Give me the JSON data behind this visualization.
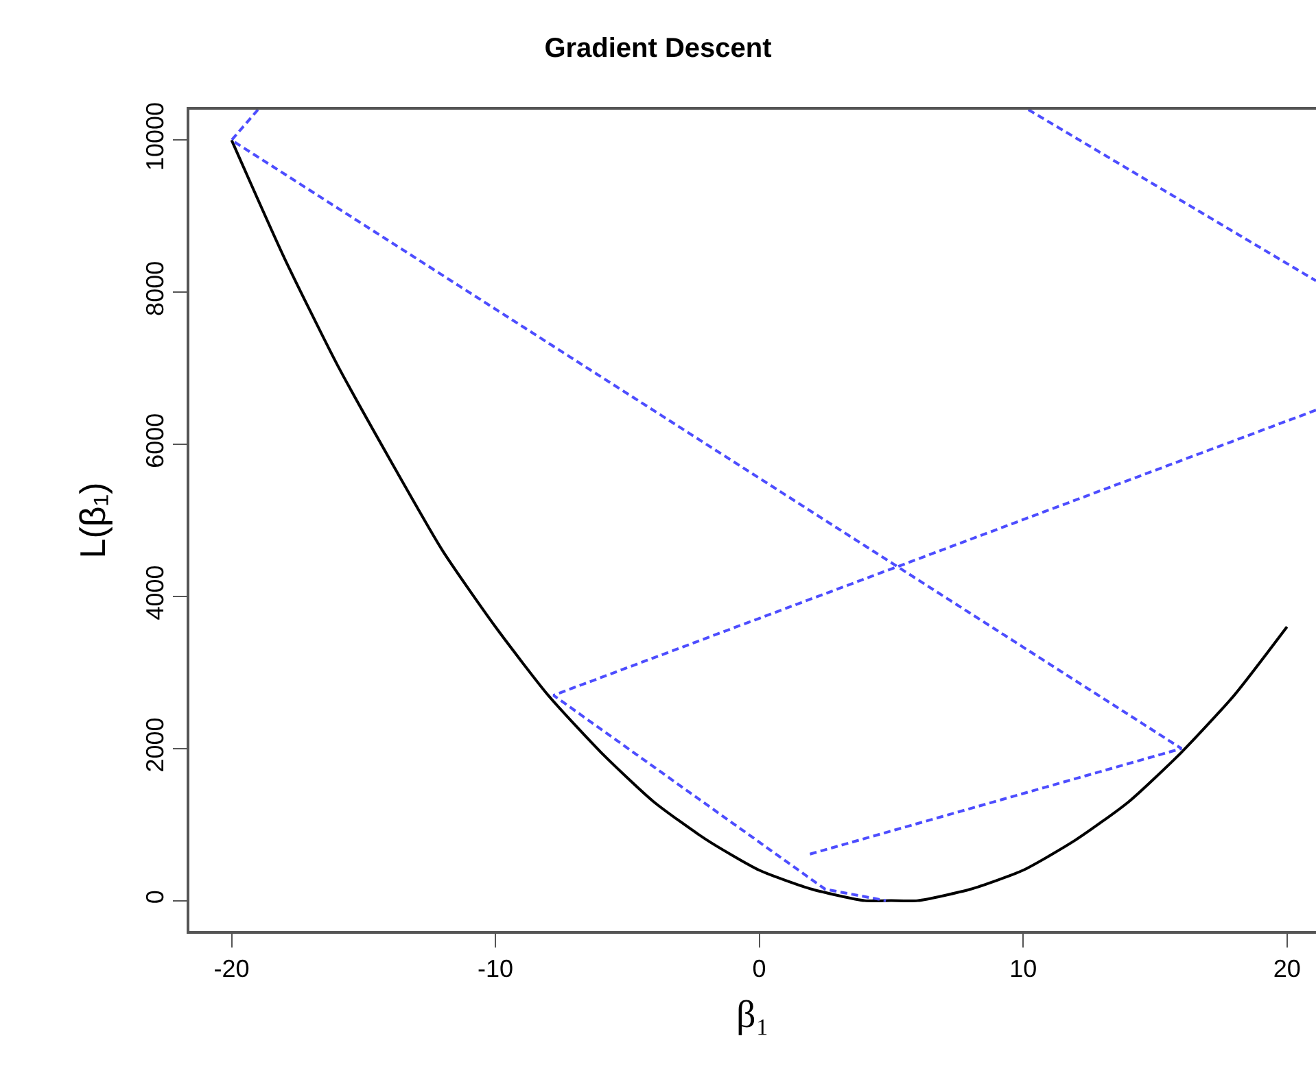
{
  "chart_data": {
    "type": "line",
    "title": "Gradient Descent",
    "xlabel": "β₁",
    "ylabel": "L(β₁)",
    "xlim": [
      -21.6,
      21.1
    ],
    "ylim": [
      -400,
      10400
    ],
    "xticks": [
      -20,
      -10,
      0,
      10,
      20
    ],
    "yticks": [
      0,
      2000,
      4000,
      6000,
      8000,
      10000
    ],
    "grid": false,
    "marker": "none",
    "series": [
      {
        "color": "#000000",
        "line_style": "solid",
        "x": [
          -20,
          -18,
          -16,
          -14,
          -12,
          -10,
          -8,
          -6,
          -4,
          -2,
          0,
          2,
          4,
          5,
          6,
          8,
          10,
          12,
          14,
          16,
          18,
          20
        ],
        "values": [
          10000,
          8450,
          7050,
          5800,
          4600,
          3600,
          2700,
          1950,
          1300,
          800,
          400,
          150,
          0,
          0,
          0,
          150,
          400,
          800,
          1300,
          1950,
          2700,
          3600
        ]
      },
      {
        "color": "#4d4dff",
        "line_style": "dashed",
        "x": [
          -19,
          -20,
          16,
          1.8
        ],
        "values": [
          10400,
          10000,
          2000,
          600
        ]
      },
      {
        "color": "#4d4dff",
        "line_style": "dashed",
        "x": [
          10.2,
          21.1
        ],
        "values": [
          10400,
          8150
        ]
      },
      {
        "color": "#4d4dff",
        "line_style": "dashed",
        "x": [
          21.1,
          -7.8,
          2.5,
          4.8
        ],
        "values": [
          6450,
          2700,
          150,
          0
        ]
      }
    ]
  }
}
